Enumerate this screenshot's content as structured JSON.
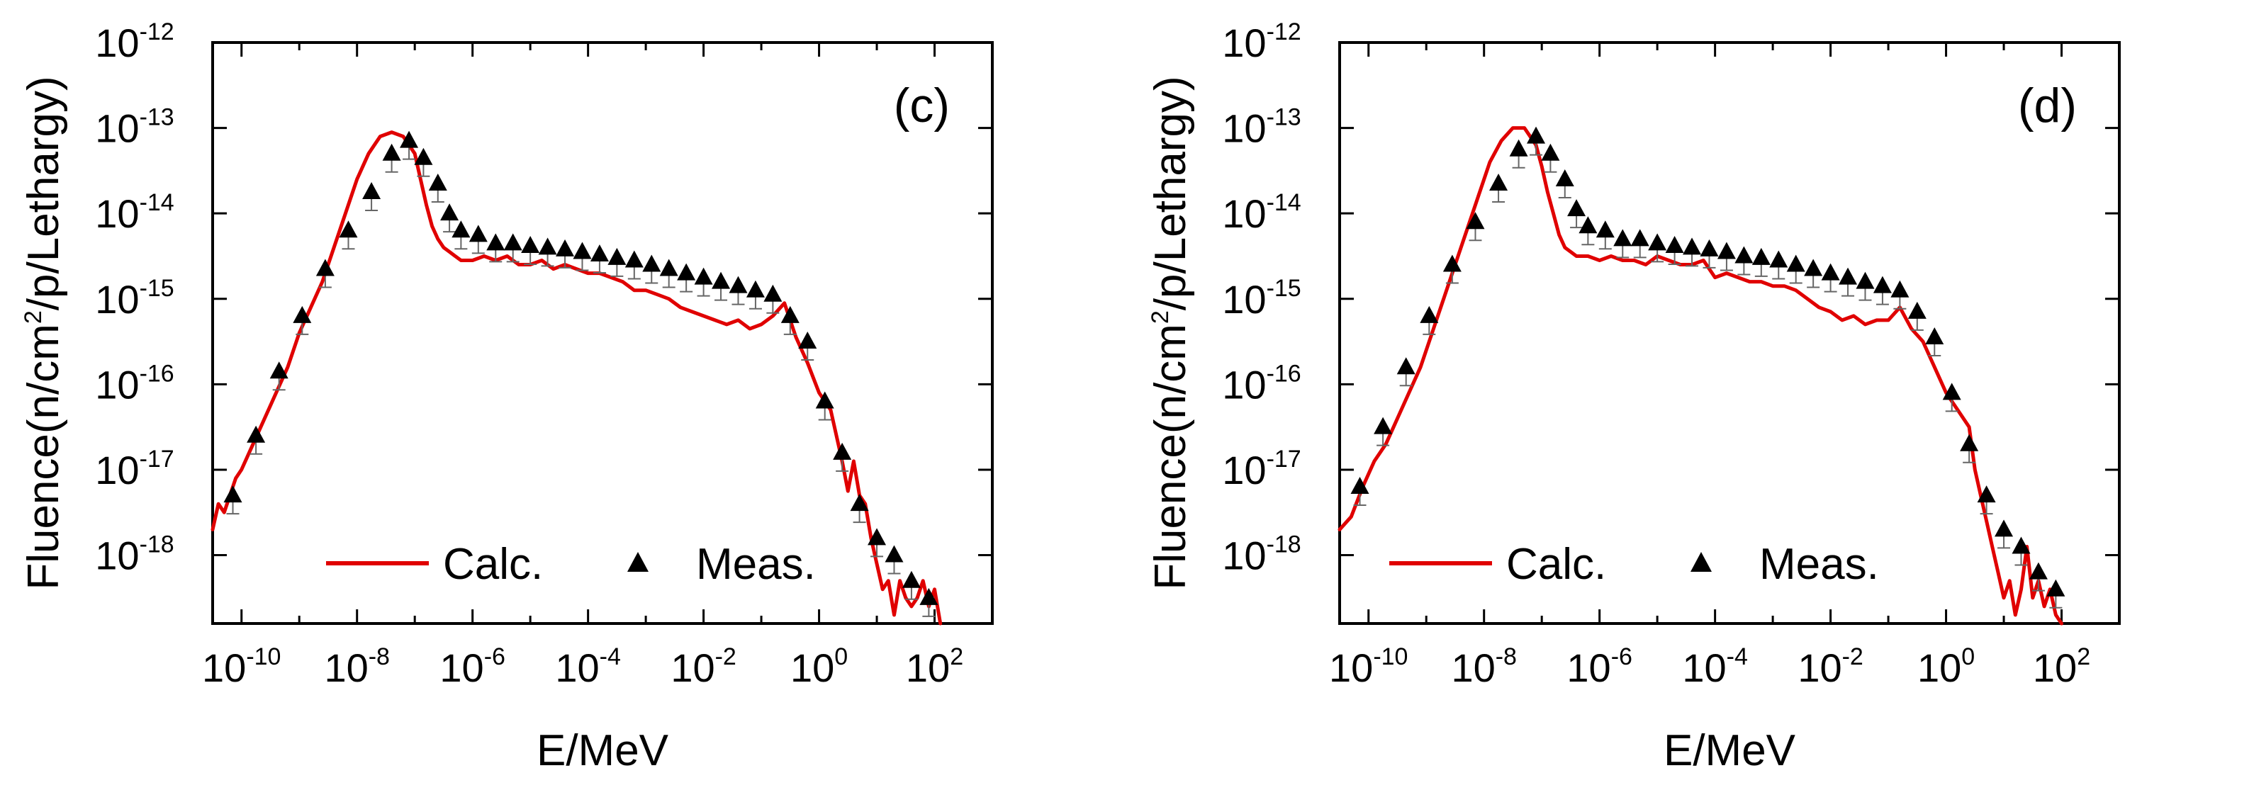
{
  "chart_data": [
    {
      "type": "line",
      "panel_label": "(c)",
      "xlabel": "E/MeV",
      "ylabel": "Fluence(n/cm2/p/Lethargy)",
      "ylabel_parts": [
        "Fluence(n/cm",
        "2",
        "/p/Lethargy)"
      ],
      "x_scale": "log",
      "y_scale": "log",
      "xlim_log10": [
        -10.5,
        3
      ],
      "ylim_log10": [
        -18.8,
        -12
      ],
      "x_ticks": [
        {
          "base": "10",
          "exp": "-10",
          "log10": -10
        },
        {
          "base": "10",
          "exp": "-8",
          "log10": -8
        },
        {
          "base": "10",
          "exp": "-6",
          "log10": -6
        },
        {
          "base": "10",
          "exp": "-4",
          "log10": -4
        },
        {
          "base": "10",
          "exp": "-2",
          "log10": -2
        },
        {
          "base": "10",
          "exp": "0",
          "log10": 0
        },
        {
          "base": "10",
          "exp": "2",
          "log10": 2
        }
      ],
      "y_ticks": [
        {
          "base": "10",
          "exp": "-12",
          "log10": -12
        },
        {
          "base": "10",
          "exp": "-13",
          "log10": -13
        },
        {
          "base": "10",
          "exp": "-14",
          "log10": -14
        },
        {
          "base": "10",
          "exp": "-15",
          "log10": -15
        },
        {
          "base": "10",
          "exp": "-16",
          "log10": -16
        },
        {
          "base": "10",
          "exp": "-17",
          "log10": -17
        },
        {
          "base": "10",
          "exp": "-18",
          "log10": -18
        }
      ],
      "legend": [
        {
          "label": "Calc.",
          "style": "line",
          "color": "#e00000"
        },
        {
          "label": "Meas.",
          "style": "triangle",
          "color": "#000000"
        }
      ],
      "series": [
        {
          "name": "Calc.",
          "color": "#e00000",
          "log10_x": [
            -10.5,
            -10.4,
            -10.3,
            -10.2,
            -10.1,
            -10.0,
            -9.8,
            -9.6,
            -9.4,
            -9.2,
            -9.0,
            -8.8,
            -8.6,
            -8.4,
            -8.2,
            -8.0,
            -7.8,
            -7.6,
            -7.4,
            -7.2,
            -7.0,
            -6.9,
            -6.8,
            -6.7,
            -6.6,
            -6.5,
            -6.4,
            -6.3,
            -6.2,
            -6.0,
            -5.8,
            -5.6,
            -5.4,
            -5.2,
            -5.0,
            -4.8,
            -4.6,
            -4.4,
            -4.2,
            -4.0,
            -3.8,
            -3.6,
            -3.4,
            -3.2,
            -3.0,
            -2.8,
            -2.6,
            -2.4,
            -2.2,
            -2.0,
            -1.8,
            -1.6,
            -1.4,
            -1.2,
            -1.0,
            -0.8,
            -0.6,
            -0.4,
            -0.2,
            0.0,
            0.2,
            0.4,
            0.5,
            0.6,
            0.7,
            0.8,
            0.9,
            1.0,
            1.1,
            1.2,
            1.3,
            1.4,
            1.5,
            1.6,
            1.7,
            1.8,
            1.9,
            2.0,
            2.1
          ],
          "log10_y": [
            -17.7,
            -17.4,
            -17.5,
            -17.3,
            -17.1,
            -17.0,
            -16.7,
            -16.4,
            -16.1,
            -15.8,
            -15.4,
            -15.1,
            -14.8,
            -14.4,
            -14.0,
            -13.6,
            -13.3,
            -13.1,
            -13.05,
            -13.1,
            -13.3,
            -13.6,
            -13.9,
            -14.15,
            -14.3,
            -14.4,
            -14.45,
            -14.5,
            -14.55,
            -14.55,
            -14.5,
            -14.55,
            -14.5,
            -14.6,
            -14.6,
            -14.55,
            -14.65,
            -14.6,
            -14.65,
            -14.7,
            -14.7,
            -14.75,
            -14.8,
            -14.9,
            -14.9,
            -14.95,
            -15.0,
            -15.1,
            -15.15,
            -15.2,
            -15.25,
            -15.3,
            -15.25,
            -15.35,
            -15.3,
            -15.2,
            -15.05,
            -15.45,
            -15.75,
            -16.1,
            -16.3,
            -16.9,
            -17.25,
            -16.9,
            -17.3,
            -17.4,
            -17.8,
            -18.1,
            -18.4,
            -18.3,
            -18.7,
            -18.3,
            -18.5,
            -18.6,
            -18.5,
            -18.3,
            -18.6,
            -18.4,
            -18.8
          ]
        },
        {
          "name": "Meas.",
          "color": "#000000",
          "log10_x": [
            -10.15,
            -9.75,
            -9.35,
            -8.95,
            -8.55,
            -8.15,
            -7.75,
            -7.4,
            -7.1,
            -6.85,
            -6.6,
            -6.4,
            -6.2,
            -5.9,
            -5.6,
            -5.3,
            -5.0,
            -4.7,
            -4.4,
            -4.1,
            -3.8,
            -3.5,
            -3.2,
            -2.9,
            -2.6,
            -2.3,
            -2.0,
            -1.7,
            -1.4,
            -1.1,
            -0.8,
            -0.5,
            -0.2,
            0.1,
            0.4,
            0.7,
            1.0,
            1.3,
            1.6,
            1.9
          ],
          "log10_y": [
            -17.3,
            -16.6,
            -15.85,
            -15.2,
            -14.65,
            -14.2,
            -13.75,
            -13.3,
            -13.15,
            -13.35,
            -13.65,
            -14.0,
            -14.2,
            -14.25,
            -14.35,
            -14.35,
            -14.38,
            -14.4,
            -14.42,
            -14.45,
            -14.48,
            -14.52,
            -14.55,
            -14.6,
            -14.65,
            -14.7,
            -14.75,
            -14.8,
            -14.85,
            -14.9,
            -14.95,
            -15.2,
            -15.5,
            -16.2,
            -16.8,
            -17.4,
            -17.8,
            -18.0,
            -18.3,
            -18.5
          ]
        }
      ]
    },
    {
      "type": "line",
      "panel_label": "(d)",
      "xlabel": "E/MeV",
      "ylabel": "Fluence(n/cm2/p/Lethargy)",
      "ylabel_parts": [
        "Fluence(n/cm",
        "2",
        "/p/Lethargy)"
      ],
      "x_scale": "log",
      "y_scale": "log",
      "xlim_log10": [
        -10.5,
        3
      ],
      "ylim_log10": [
        -18.8,
        -12
      ],
      "x_ticks": [
        {
          "base": "10",
          "exp": "-10",
          "log10": -10
        },
        {
          "base": "10",
          "exp": "-8",
          "log10": -8
        },
        {
          "base": "10",
          "exp": "-6",
          "log10": -6
        },
        {
          "base": "10",
          "exp": "-4",
          "log10": -4
        },
        {
          "base": "10",
          "exp": "-2",
          "log10": -2
        },
        {
          "base": "10",
          "exp": "0",
          "log10": 0
        },
        {
          "base": "10",
          "exp": "2",
          "log10": 2
        }
      ],
      "y_ticks": [
        {
          "base": "10",
          "exp": "-12",
          "log10": -12
        },
        {
          "base": "10",
          "exp": "-13",
          "log10": -13
        },
        {
          "base": "10",
          "exp": "-14",
          "log10": -14
        },
        {
          "base": "10",
          "exp": "-15",
          "log10": -15
        },
        {
          "base": "10",
          "exp": "-16",
          "log10": -16
        },
        {
          "base": "10",
          "exp": "-17",
          "log10": -17
        },
        {
          "base": "10",
          "exp": "-18",
          "log10": -18
        }
      ],
      "legend": [
        {
          "label": "Calc.",
          "style": "line",
          "color": "#e00000"
        },
        {
          "label": "Meas.",
          "style": "triangle",
          "color": "#000000"
        }
      ],
      "series": [
        {
          "name": "Calc.",
          "color": "#e00000",
          "log10_x": [
            -10.5,
            -10.3,
            -10.1,
            -9.9,
            -9.7,
            -9.5,
            -9.3,
            -9.1,
            -8.9,
            -8.7,
            -8.5,
            -8.3,
            -8.1,
            -7.9,
            -7.7,
            -7.5,
            -7.3,
            -7.1,
            -7.0,
            -6.9,
            -6.8,
            -6.7,
            -6.6,
            -6.5,
            -6.4,
            -6.2,
            -6.0,
            -5.8,
            -5.6,
            -5.4,
            -5.2,
            -5.0,
            -4.8,
            -4.6,
            -4.4,
            -4.2,
            -4.0,
            -3.8,
            -3.6,
            -3.4,
            -3.2,
            -3.0,
            -2.8,
            -2.6,
            -2.4,
            -2.2,
            -2.0,
            -1.8,
            -1.6,
            -1.4,
            -1.2,
            -1.0,
            -0.8,
            -0.6,
            -0.4,
            -0.2,
            0.0,
            0.2,
            0.4,
            0.5,
            0.6,
            0.7,
            0.8,
            0.9,
            1.0,
            1.1,
            1.2,
            1.3,
            1.4,
            1.5,
            1.6,
            1.7,
            1.8,
            1.9,
            2.0
          ],
          "log10_y": [
            -17.7,
            -17.55,
            -17.2,
            -16.9,
            -16.7,
            -16.4,
            -16.1,
            -15.8,
            -15.4,
            -15.0,
            -14.6,
            -14.2,
            -13.8,
            -13.4,
            -13.15,
            -13.0,
            -13.0,
            -13.2,
            -13.45,
            -13.75,
            -14.0,
            -14.25,
            -14.4,
            -14.45,
            -14.5,
            -14.5,
            -14.55,
            -14.5,
            -14.55,
            -14.55,
            -14.6,
            -14.5,
            -14.55,
            -14.6,
            -14.6,
            -14.55,
            -14.75,
            -14.7,
            -14.75,
            -14.8,
            -14.8,
            -14.85,
            -14.85,
            -14.9,
            -15.0,
            -15.1,
            -15.15,
            -15.25,
            -15.2,
            -15.3,
            -15.25,
            -15.25,
            -15.1,
            -15.35,
            -15.5,
            -15.8,
            -16.1,
            -16.3,
            -16.5,
            -17.0,
            -17.3,
            -17.6,
            -17.9,
            -18.2,
            -18.5,
            -18.3,
            -18.7,
            -18.4,
            -17.9,
            -18.5,
            -18.3,
            -18.6,
            -18.4,
            -18.7,
            -18.8
          ]
        },
        {
          "name": "Meas.",
          "color": "#000000",
          "log10_x": [
            -10.15,
            -9.75,
            -9.35,
            -8.95,
            -8.55,
            -8.15,
            -7.75,
            -7.4,
            -7.1,
            -6.85,
            -6.6,
            -6.4,
            -6.2,
            -5.9,
            -5.6,
            -5.3,
            -5.0,
            -4.7,
            -4.4,
            -4.1,
            -3.8,
            -3.5,
            -3.2,
            -2.9,
            -2.6,
            -2.3,
            -2.0,
            -1.7,
            -1.4,
            -1.1,
            -0.8,
            -0.5,
            -0.2,
            0.1,
            0.4,
            0.7,
            1.0,
            1.3,
            1.6,
            1.9
          ],
          "log10_y": [
            -17.2,
            -16.5,
            -15.8,
            -15.2,
            -14.6,
            -14.1,
            -13.65,
            -13.25,
            -13.1,
            -13.3,
            -13.6,
            -13.95,
            -14.15,
            -14.2,
            -14.3,
            -14.3,
            -14.35,
            -14.38,
            -14.4,
            -14.42,
            -14.45,
            -14.5,
            -14.52,
            -14.55,
            -14.6,
            -14.65,
            -14.7,
            -14.75,
            -14.8,
            -14.85,
            -14.9,
            -15.15,
            -15.45,
            -16.1,
            -16.7,
            -17.3,
            -17.7,
            -17.9,
            -18.2,
            -18.4
          ]
        }
      ]
    }
  ]
}
